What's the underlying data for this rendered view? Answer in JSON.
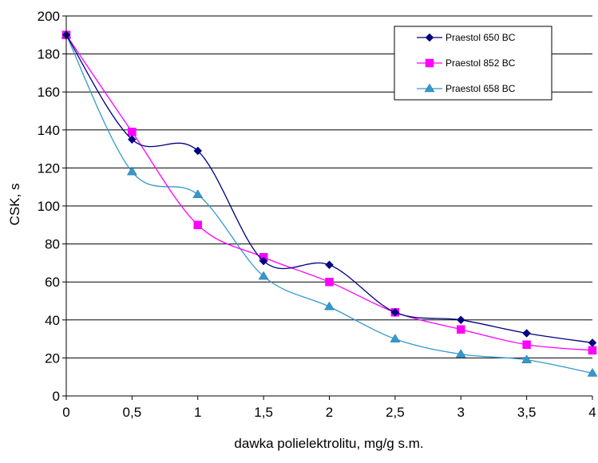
{
  "chart_data": {
    "type": "line",
    "x": [
      0,
      0.5,
      1,
      1.5,
      2,
      2.5,
      3,
      3.5,
      4
    ],
    "x_tick_labels": [
      "0",
      "0,5",
      "1",
      "1,5",
      "2",
      "2,5",
      "3",
      "3,5",
      "4"
    ],
    "y_tick_labels": [
      "0",
      "20",
      "40",
      "60",
      "80",
      "100",
      "120",
      "140",
      "160",
      "180",
      "200"
    ],
    "xlabel": "dawka polielektrolitu, mg/g s.m.",
    "ylabel": "CSK, s",
    "xlim": [
      0,
      4
    ],
    "ylim": [
      0,
      200
    ],
    "grid": "horizontal",
    "smooth": true,
    "legend_position": "top-right",
    "series": [
      {
        "name": "Praestol 650 BC",
        "color": "#000080",
        "marker": "diamond",
        "values": [
          190,
          135,
          129,
          71,
          69,
          44,
          40,
          33,
          28
        ]
      },
      {
        "name": "Praestol 852 BC",
        "color": "#FF00FF",
        "marker": "square",
        "values": [
          190,
          139,
          90,
          73,
          60,
          44,
          35,
          27,
          24
        ]
      },
      {
        "name": "Praestol 658 BC",
        "color": "#3399CC",
        "marker": "triangle",
        "values": [
          190,
          118,
          106,
          63,
          47,
          30,
          22,
          19,
          12
        ]
      }
    ]
  }
}
